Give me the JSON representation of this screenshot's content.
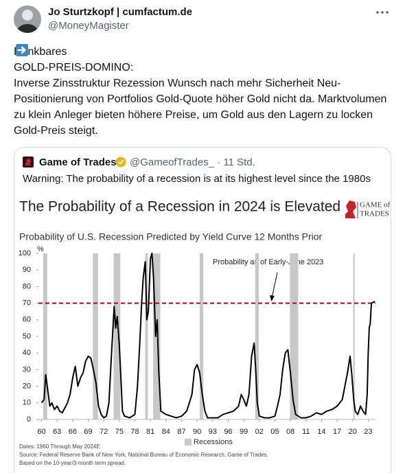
{
  "author": {
    "name": "Jo Sturtzkopf | cumfactum.de",
    "handle": "@MoneyMagister"
  },
  "tweet": {
    "intro": [
      "Denkbares",
      "GOLD-PREIS-DOMINO:"
    ],
    "chain": [
      "Inverse Zinsstruktur",
      "Rezession",
      "Wunsch nach mehr Sicherheit",
      "Neu-Positionierung von Portfolios",
      "Gold-Quote höher",
      "Gold nicht da. Marktvolumen zu klein",
      "Anleger bieten höhere Preise, um Gold aus den Lagern zu locken",
      "Gold-Preis steigt."
    ]
  },
  "quote": {
    "name": "Game of Trades",
    "meta": "@GameofTrades_ · 11 Std.",
    "text": "Warning: The probability of a recession is at its highest level since the 1980s"
  },
  "chart_data": {
    "type": "line",
    "title": "The Probability of a Recession in 2024 is Elevated",
    "subtitle": "Probability of U.S. Recession Predicted by Yield Curve 12 Months Prior",
    "logo": [
      "GAME of",
      "TRADES"
    ],
    "y_unit": "%",
    "annotation": "Probability as of Early-June 2023",
    "legend": "Recessions",
    "notes": [
      "Dates: 1960 Through May 2024E",
      "Source: Federal Reserve Bank of New York, National Bureau of Economic Research, Game of Trades.",
      "Based on the 10-year/3-month term spread."
    ],
    "color": "#000000",
    "threshold": 70,
    "threshold_color": "#c00000",
    "recession_color": "#c8c8c8",
    "recessions": [
      [
        1960.3,
        1961.1
      ],
      [
        1969.9,
        1970.9
      ],
      [
        1973.9,
        1975.2
      ],
      [
        1980.0,
        1980.5
      ],
      [
        1981.5,
        1982.9
      ],
      [
        1990.5,
        1991.2
      ],
      [
        2001.2,
        2001.9
      ],
      [
        2007.9,
        2009.5
      ],
      [
        2020.1,
        2020.4
      ]
    ],
    "x": [
      1960,
      1960.5,
      1960.8,
      1961.3,
      1961.6,
      1962,
      1962.5,
      1963,
      1963.5,
      1964,
      1964.5,
      1965,
      1965.5,
      1966,
      1966.5,
      1967,
      1967.5,
      1968,
      1968.5,
      1969,
      1969.5,
      1970,
      1970.5,
      1971,
      1971.5,
      1972,
      1972.5,
      1973,
      1973.5,
      1974,
      1974.3,
      1974.6,
      1975,
      1975.3,
      1975.6,
      1976,
      1977,
      1978,
      1978.5,
      1979,
      1979.3,
      1979.6,
      1980,
      1980.3,
      1980.6,
      1981,
      1981.3,
      1981.6,
      1982,
      1982.3,
      1982.6,
      1983,
      1984,
      1985,
      1986,
      1987,
      1988,
      1989,
      1989.5,
      1990,
      1990.5,
      1991,
      1991.5,
      1992,
      1993,
      1994,
      1995,
      1996,
      1997,
      1998,
      1998.5,
      1999,
      1999.5,
      2000,
      2000.5,
      2001,
      2001.3,
      2001.6,
      2002,
      2003,
      2004,
      2005,
      2005.5,
      2006,
      2006.5,
      2007,
      2007.5,
      2008,
      2008.5,
      2009,
      2010,
      2011,
      2012,
      2013,
      2014,
      2015,
      2016,
      2017,
      2018,
      2018.5,
      2019,
      2019.5,
      2019.8,
      2020.2,
      2020.5,
      2021,
      2021.5,
      2022,
      2022.5,
      2022.8,
      2023,
      2023.2,
      2023.4,
      2023.6,
      2024.3
    ],
    "values": [
      10,
      12,
      27,
      15,
      8,
      10,
      6,
      8,
      5,
      4,
      7,
      10,
      15,
      25,
      32,
      20,
      25,
      28,
      35,
      38,
      37,
      30,
      22,
      8,
      3,
      1,
      2,
      10,
      40,
      68,
      55,
      62,
      45,
      25,
      5,
      2,
      1,
      3,
      20,
      50,
      70,
      85,
      95,
      60,
      65,
      97,
      100,
      85,
      50,
      60,
      30,
      5,
      3,
      2,
      1,
      2,
      5,
      15,
      30,
      33,
      28,
      15,
      5,
      1,
      1,
      1,
      3,
      4,
      5,
      8,
      15,
      12,
      8,
      15,
      38,
      46,
      30,
      10,
      2,
      1,
      1,
      2,
      8,
      15,
      30,
      40,
      42,
      28,
      12,
      3,
      1,
      1,
      2,
      4,
      3,
      5,
      6,
      8,
      12,
      20,
      28,
      38,
      28,
      12,
      5,
      3,
      8,
      5,
      3,
      15,
      40,
      55,
      58,
      70,
      71
    ],
    "xlim": [
      1959.4,
      2024.4
    ],
    "xticks": [
      {
        "value": 1960,
        "label": "60"
      },
      {
        "value": 1963,
        "label": "63"
      },
      {
        "value": 1966,
        "label": "66"
      },
      {
        "value": 1969,
        "label": "69"
      },
      {
        "value": 1972,
        "label": "72"
      },
      {
        "value": 1975,
        "label": "75"
      },
      {
        "value": 1978,
        "label": "78"
      },
      {
        "value": 1981,
        "label": "81"
      },
      {
        "value": 1984,
        "label": "84"
      },
      {
        "value": 1987,
        "label": "87"
      },
      {
        "value": 1990,
        "label": "90"
      },
      {
        "value": 1993,
        "label": "93"
      },
      {
        "value": 1996,
        "label": "96"
      },
      {
        "value": 1999,
        "label": "99"
      },
      {
        "value": 2002,
        "label": "02"
      },
      {
        "value": 2005,
        "label": "05"
      },
      {
        "value": 2008,
        "label": "08"
      },
      {
        "value": 2011,
        "label": "11"
      },
      {
        "value": 2014,
        "label": "14"
      },
      {
        "value": 2017,
        "label": "17"
      },
      {
        "value": 2020,
        "label": "20"
      },
      {
        "value": 2023,
        "label": "23"
      }
    ],
    "ylim": [
      0,
      100
    ],
    "yticks": [
      0,
      10,
      20,
      30,
      40,
      50,
      60,
      70,
      80,
      90,
      100
    ],
    "grid": false
  }
}
